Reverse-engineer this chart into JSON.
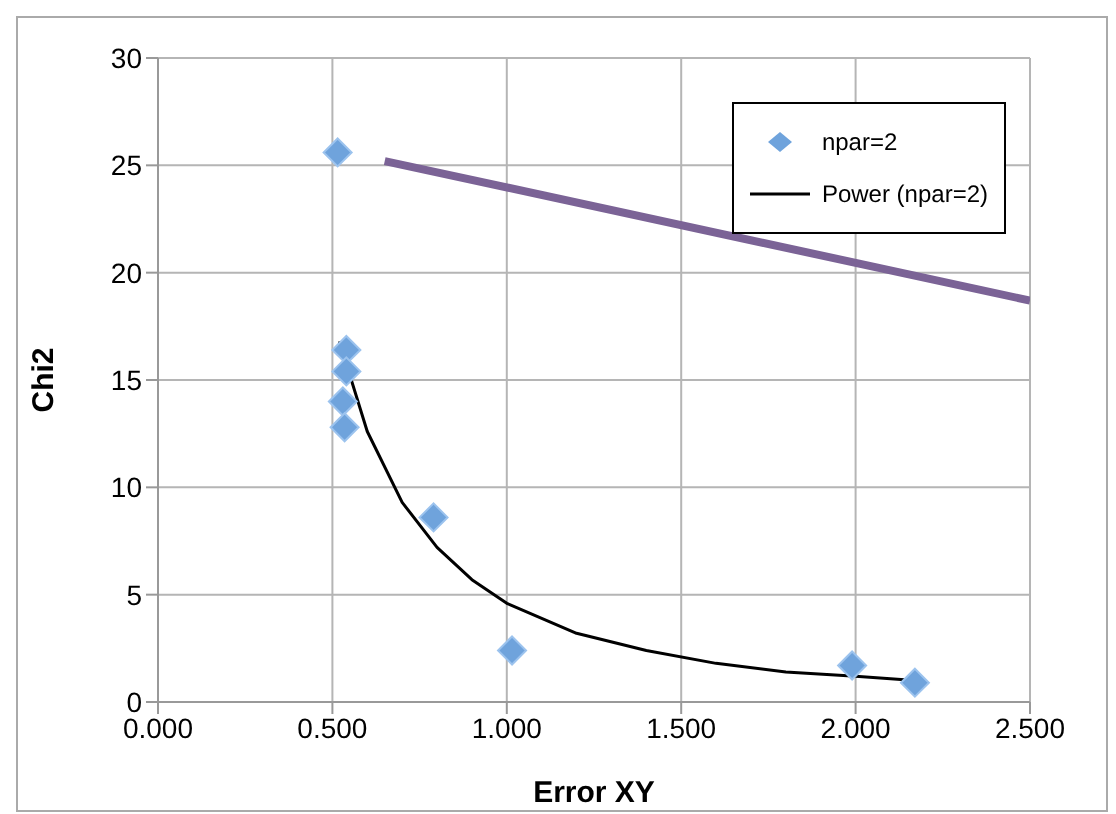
{
  "chart_data": {
    "type": "scatter",
    "xlabel": "Error XY",
    "ylabel": "Chi2",
    "xlim": [
      0,
      2.5
    ],
    "xticks": [
      {
        "value": 0,
        "label": "0.000"
      },
      {
        "value": 0.5,
        "label": "0.500"
      },
      {
        "value": 1,
        "label": "1.000"
      },
      {
        "value": 1.5,
        "label": "1.500"
      },
      {
        "value": 2,
        "label": "2.000"
      },
      {
        "value": 2.5,
        "label": "2.500"
      }
    ],
    "ylim": [
      0,
      30
    ],
    "yticks": [
      0,
      5,
      10,
      15,
      20,
      25,
      30
    ],
    "grid": true,
    "legend": "top right",
    "series": [
      {
        "name": "npar=2",
        "marker": "diamond",
        "color": "#6fa3dc",
        "x": [
          0.515,
          0.54,
          0.54,
          0.53,
          0.535,
          0.79,
          1.015,
          1.99,
          2.17
        ],
        "values": [
          25.6,
          16.4,
          15.4,
          14.0,
          12.8,
          8.6,
          2.4,
          1.7,
          0.9
        ]
      },
      {
        "name": "Power (npar=2)",
        "type": "line",
        "marker": "none",
        "line_style": "solid",
        "color": "#000000",
        "x": [
          0.52,
          0.6,
          0.7,
          0.8,
          0.9,
          1.0,
          1.2,
          1.4,
          1.6,
          1.8,
          2.0,
          2.17
        ],
        "values": [
          16.8,
          12.6,
          9.3,
          7.2,
          5.7,
          4.6,
          3.2,
          2.4,
          1.8,
          1.4,
          1.2,
          1.0
        ]
      },
      {
        "type": "line",
        "marker": "none",
        "line_style": "solid",
        "color": "#7b6396",
        "x": [
          0.65,
          2.5
        ],
        "values": [
          25.2,
          18.7
        ]
      }
    ]
  }
}
